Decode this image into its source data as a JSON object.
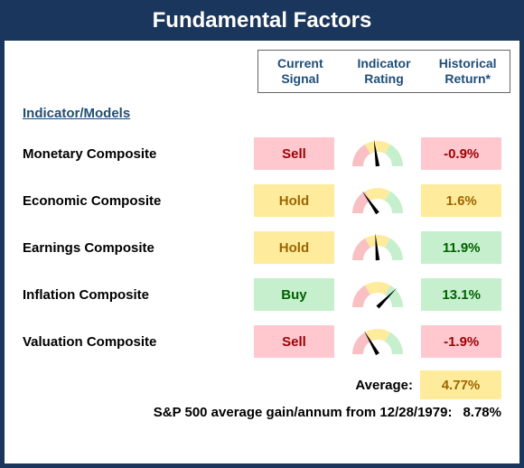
{
  "title": "Fundamental Factors",
  "headers": [
    "Current Signal",
    "Indicator Rating",
    "Historical Return*"
  ],
  "section_heading": "Indicator/Models",
  "colors": {
    "frame": "#1a365d",
    "header_text": "#1f4e79",
    "buy_bg": "#c6efce",
    "buy_fg": "#006100",
    "hold_bg": "#ffeb9c",
    "hold_fg": "#9c6500",
    "sell_bg": "#ffc7ce",
    "sell_fg": "#9c0006",
    "gauge_left": "#f9c0c4",
    "gauge_mid": "#ffeb9c",
    "gauge_right": "#c6efce",
    "needle": "#000000"
  },
  "rows": [
    {
      "name": "Monetary Composite",
      "signal": "Sell",
      "signal_style": "sell",
      "gauge_angle_deg": 82,
      "return": "-0.9%",
      "return_style": "sell"
    },
    {
      "name": "Economic Composite",
      "signal": "Hold",
      "signal_style": "hold",
      "gauge_angle_deg": 55,
      "return": "1.6%",
      "return_style": "hold"
    },
    {
      "name": "Earnings Composite",
      "signal": "Hold",
      "signal_style": "hold",
      "gauge_angle_deg": 85,
      "return": "11.9%",
      "return_style": "buy"
    },
    {
      "name": "Inflation Composite",
      "signal": "Buy",
      "signal_style": "buy",
      "gauge_angle_deg": 135,
      "return": "13.1%",
      "return_style": "buy"
    },
    {
      "name": "Valuation Composite",
      "signal": "Sell",
      "signal_style": "sell",
      "gauge_angle_deg": 60,
      "return": "-1.9%",
      "return_style": "sell"
    }
  ],
  "average_label": "Average:",
  "average_value": "4.77%",
  "average_style": "hold",
  "benchmark_label": "S&P 500 average gain/annum from 12/28/1979:",
  "benchmark_value": "8.78%"
}
